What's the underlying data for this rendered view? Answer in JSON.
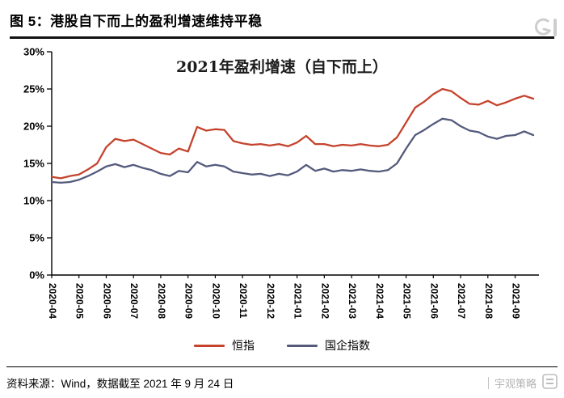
{
  "figure": {
    "title": "图 5：港股自下而上的盈利增速维持平稳"
  },
  "footer": {
    "source": "资料来源：Wind，数据截至 2021 年 9 月 24 日",
    "watermark": "宇观策略"
  },
  "chart_data": {
    "type": "line",
    "title": "2021年盈利增速（自下而上）",
    "x_tick_labels": [
      "2020-04",
      "2020-05",
      "2020-06",
      "2020-07",
      "2020-08",
      "2020-09",
      "2020-10",
      "2020-11",
      "2020-12",
      "2021-01",
      "2021-02",
      "2021-03",
      "2021-04",
      "2021-05",
      "2021-06",
      "2021-07",
      "2021-08",
      "2021-09"
    ],
    "ylim": [
      0,
      30
    ],
    "yticks": [
      0,
      5,
      10,
      15,
      20,
      25,
      30
    ],
    "ytick_suffix": "%",
    "grid": false,
    "legend_position": "bottom",
    "points_per_month": 3,
    "axis_color": "#000000",
    "series": [
      {
        "name": "恒指",
        "color": "#c5432d",
        "values": [
          13.2,
          13.0,
          13.3,
          13.5,
          14.2,
          15.0,
          17.2,
          18.3,
          18.0,
          18.2,
          17.6,
          17.0,
          16.4,
          16.2,
          17.0,
          16.6,
          19.9,
          19.4,
          19.6,
          19.5,
          18.0,
          17.7,
          17.5,
          17.6,
          17.4,
          17.6,
          17.3,
          17.8,
          18.7,
          17.6,
          17.6,
          17.3,
          17.5,
          17.4,
          17.6,
          17.4,
          17.3,
          17.5,
          18.5,
          20.5,
          22.5,
          23.3,
          24.3,
          25.0,
          24.7,
          23.8,
          23.0,
          22.9,
          23.4,
          22.8,
          23.2,
          23.7,
          24.1,
          23.7
        ]
      },
      {
        "name": "国企指数",
        "color": "#545a7c",
        "values": [
          12.5,
          12.4,
          12.5,
          12.8,
          13.3,
          13.9,
          14.6,
          14.9,
          14.5,
          14.8,
          14.4,
          14.1,
          13.6,
          13.3,
          14.0,
          13.8,
          15.2,
          14.6,
          14.8,
          14.6,
          13.9,
          13.7,
          13.5,
          13.6,
          13.3,
          13.6,
          13.4,
          13.9,
          14.8,
          14.0,
          14.3,
          13.9,
          14.1,
          14.0,
          14.2,
          14.0,
          13.9,
          14.1,
          15.0,
          17.0,
          18.8,
          19.5,
          20.3,
          21.0,
          20.8,
          20.0,
          19.4,
          19.2,
          18.6,
          18.3,
          18.7,
          18.8,
          19.3,
          18.8
        ]
      }
    ]
  }
}
